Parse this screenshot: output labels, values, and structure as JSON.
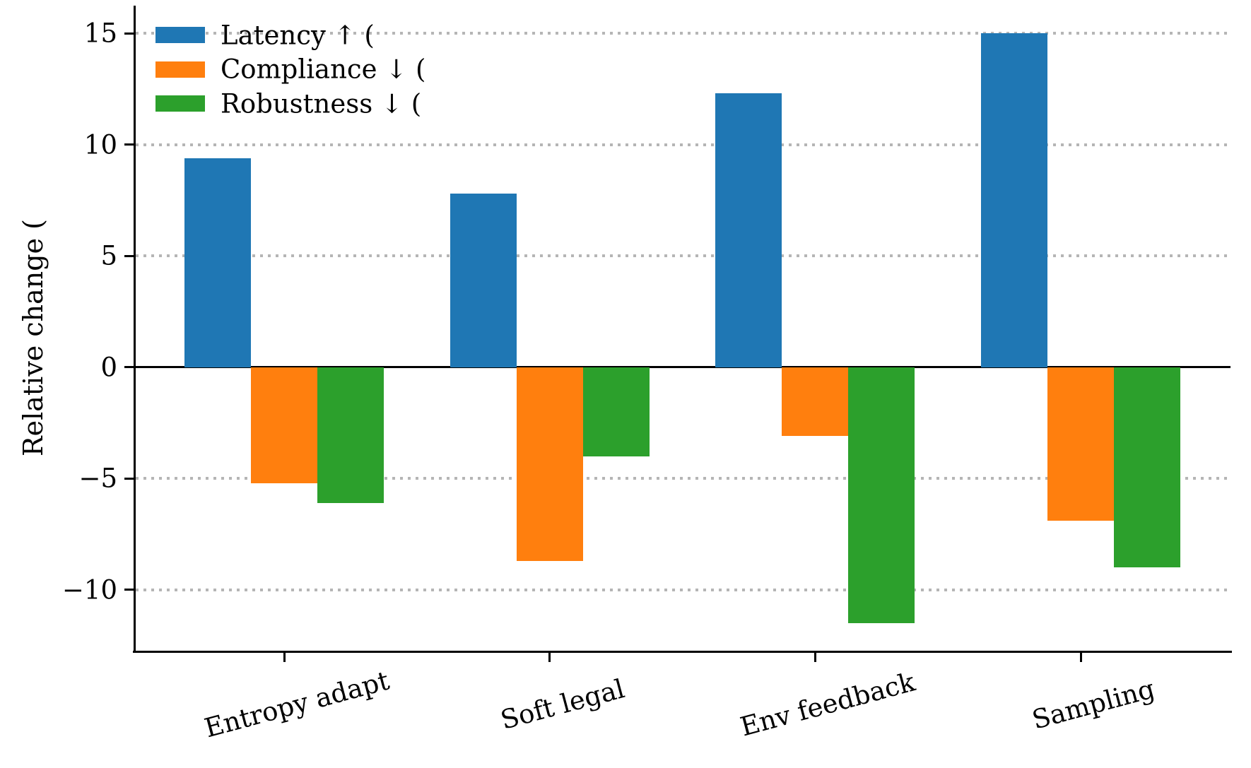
{
  "chart_data": {
    "type": "bar",
    "title": "",
    "xlabel": "",
    "ylabel": "Relative change (",
    "categories": [
      "Entropy adapt",
      "Soft legal",
      "Env feedback",
      "Sampling"
    ],
    "series": [
      {
        "name": "Latency ↑ (",
        "color": "#1f77b4",
        "values": [
          9.4,
          7.8,
          12.3,
          15.0
        ]
      },
      {
        "name": "Compliance ↓ (",
        "color": "#ff7f0e",
        "values": [
          -5.2,
          -8.7,
          -3.1,
          -6.9
        ]
      },
      {
        "name": "Robustness ↓ (",
        "color": "#2ca02c",
        "values": [
          -6.1,
          -4.0,
          -11.5,
          -9.0
        ]
      }
    ],
    "yticks": [
      15,
      10,
      5,
      0,
      -5,
      -10
    ],
    "ylim": [
      -12.8,
      16.3
    ],
    "grid": "dotted gray horizontal gridlines at yticks, solid black line at 0",
    "legend_position": "upper-left, no frame"
  }
}
